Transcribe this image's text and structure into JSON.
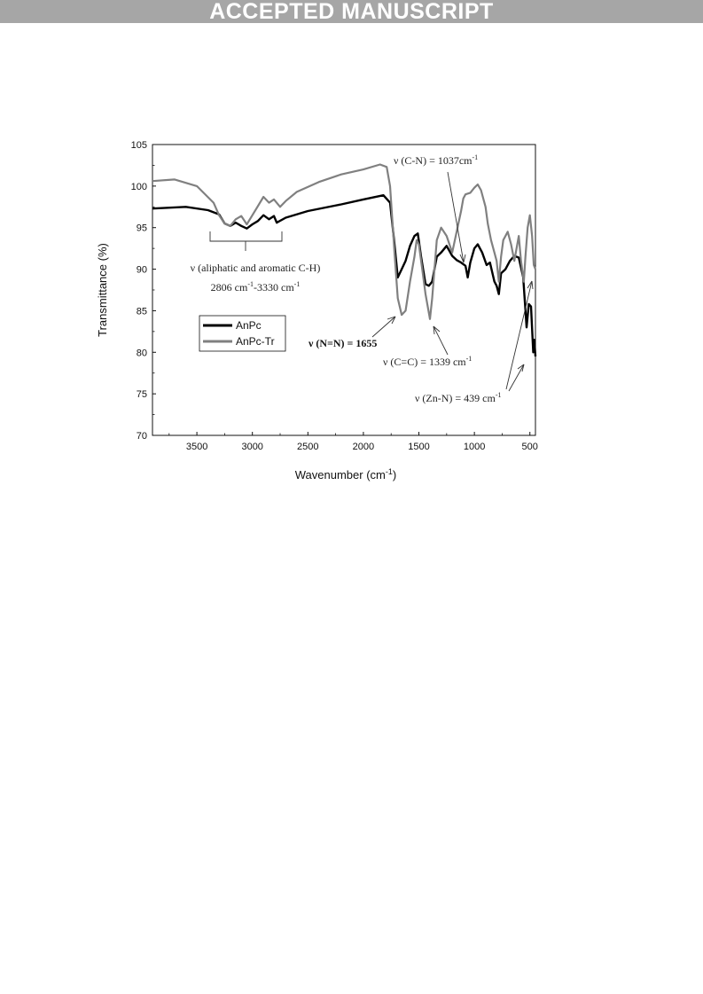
{
  "header": {
    "banner_text": "ACCEPTED MANUSCRIPT",
    "banner_color": "#a6a6a6"
  },
  "chart_data": {
    "type": "line",
    "title": "",
    "xlabel": "Wavenumber (cm",
    "xlabel_sup": "-1",
    "xlabel_tail": ")",
    "ylabel": "Transmittance (%)",
    "xlim": [
      3900,
      450
    ],
    "ylim": [
      70,
      105
    ],
    "x_reversed": true,
    "xticks": [
      3500,
      3000,
      2500,
      2000,
      1500,
      1000,
      500
    ],
    "yticks": [
      70,
      75,
      80,
      85,
      90,
      95,
      100,
      105
    ],
    "legend": {
      "placement": "middle-left"
    },
    "series": [
      {
        "name": "AnPc",
        "color": "#000000",
        "points": [
          [
            3900,
            97.3
          ],
          [
            3600,
            97.5
          ],
          [
            3400,
            97.1
          ],
          [
            3300,
            96.6
          ],
          [
            3250,
            95.5
          ],
          [
            3200,
            95.2
          ],
          [
            3150,
            95.6
          ],
          [
            3100,
            95.2
          ],
          [
            3050,
            94.9
          ],
          [
            3000,
            95.4
          ],
          [
            2950,
            95.8
          ],
          [
            2900,
            96.5
          ],
          [
            2850,
            96.0
          ],
          [
            2806,
            96.4
          ],
          [
            2780,
            95.6
          ],
          [
            2700,
            96.2
          ],
          [
            2500,
            97.0
          ],
          [
            2200,
            97.8
          ],
          [
            2000,
            98.4
          ],
          [
            1820,
            98.9
          ],
          [
            1760,
            98.0
          ],
          [
            1720,
            93.0
          ],
          [
            1690,
            89.0
          ],
          [
            1655,
            90.0
          ],
          [
            1620,
            91.0
          ],
          [
            1580,
            92.8
          ],
          [
            1540,
            94.0
          ],
          [
            1510,
            94.3
          ],
          [
            1480,
            91.5
          ],
          [
            1440,
            88.2
          ],
          [
            1410,
            88.0
          ],
          [
            1380,
            88.5
          ],
          [
            1339,
            91.5
          ],
          [
            1300,
            92.0
          ],
          [
            1250,
            92.8
          ],
          [
            1200,
            91.6
          ],
          [
            1160,
            91.1
          ],
          [
            1120,
            90.8
          ],
          [
            1080,
            90.4
          ],
          [
            1060,
            89.0
          ],
          [
            1037,
            90.8
          ],
          [
            1000,
            92.5
          ],
          [
            970,
            93.0
          ],
          [
            930,
            92.0
          ],
          [
            890,
            90.5
          ],
          [
            860,
            90.8
          ],
          [
            820,
            88.5
          ],
          [
            800,
            88.0
          ],
          [
            780,
            87.0
          ],
          [
            760,
            89.5
          ],
          [
            720,
            90.0
          ],
          [
            680,
            91.0
          ],
          [
            640,
            91.6
          ],
          [
            600,
            91.4
          ],
          [
            560,
            89.0
          ],
          [
            530,
            83.0
          ],
          [
            510,
            85.8
          ],
          [
            490,
            85.5
          ],
          [
            470,
            80.0
          ],
          [
            460,
            81.5
          ],
          [
            450,
            79.5
          ]
        ]
      },
      {
        "name": "AnPc-Tr",
        "color": "#808080",
        "points": [
          [
            3900,
            100.6
          ],
          [
            3700,
            100.8
          ],
          [
            3500,
            100.0
          ],
          [
            3350,
            98.0
          ],
          [
            3300,
            96.5
          ],
          [
            3250,
            95.5
          ],
          [
            3200,
            95.2
          ],
          [
            3150,
            96.0
          ],
          [
            3100,
            96.4
          ],
          [
            3050,
            95.4
          ],
          [
            3000,
            96.5
          ],
          [
            2950,
            97.6
          ],
          [
            2900,
            98.7
          ],
          [
            2850,
            98.0
          ],
          [
            2806,
            98.4
          ],
          [
            2750,
            97.5
          ],
          [
            2700,
            98.2
          ],
          [
            2600,
            99.3
          ],
          [
            2400,
            100.5
          ],
          [
            2200,
            101.4
          ],
          [
            2000,
            102.0
          ],
          [
            1850,
            102.6
          ],
          [
            1790,
            102.3
          ],
          [
            1760,
            100.0
          ],
          [
            1720,
            92.0
          ],
          [
            1690,
            86.5
          ],
          [
            1655,
            84.5
          ],
          [
            1620,
            85.0
          ],
          [
            1580,
            88.5
          ],
          [
            1540,
            91.5
          ],
          [
            1520,
            93.5
          ],
          [
            1500,
            93.0
          ],
          [
            1470,
            90.0
          ],
          [
            1440,
            87.0
          ],
          [
            1400,
            84.0
          ],
          [
            1380,
            86.5
          ],
          [
            1339,
            93.5
          ],
          [
            1300,
            95.0
          ],
          [
            1250,
            94.0
          ],
          [
            1200,
            92.0
          ],
          [
            1160,
            94.5
          ],
          [
            1120,
            97.0
          ],
          [
            1100,
            98.5
          ],
          [
            1080,
            99.0
          ],
          [
            1037,
            99.2
          ],
          [
            1000,
            99.8
          ],
          [
            970,
            100.2
          ],
          [
            940,
            99.5
          ],
          [
            900,
            97.5
          ],
          [
            880,
            95.5
          ],
          [
            850,
            93.5
          ],
          [
            820,
            92.0
          ],
          [
            800,
            91.0
          ],
          [
            780,
            88.5
          ],
          [
            760,
            91.5
          ],
          [
            740,
            93.5
          ],
          [
            700,
            94.5
          ],
          [
            670,
            93.0
          ],
          [
            640,
            91.0
          ],
          [
            620,
            92.5
          ],
          [
            600,
            94.0
          ],
          [
            580,
            91.0
          ],
          [
            555,
            88.5
          ],
          [
            540,
            91.5
          ],
          [
            520,
            95.0
          ],
          [
            500,
            96.5
          ],
          [
            480,
            94.0
          ],
          [
            465,
            90.5
          ],
          [
            450,
            90.0
          ]
        ]
      }
    ],
    "annotations": {
      "ch_line1": "ν (aliphatic and aromatic C-H)",
      "ch_line2a": "2806 cm",
      "ch_line2a_sup": "-1",
      "ch_line2b": "-3330 cm",
      "ch_line2b_sup": "-1",
      "cn_text": "ν (C-N) = 1037cm",
      "cn_sup": "-1",
      "nn_text": "ν (N=N) = 1655",
      "cc_text": "ν (C=C) = 1339  cm",
      "cc_sup": "-1",
      "znn_text": "ν (Zn-N) = 439  cm",
      "znn_sup": "-1"
    }
  }
}
